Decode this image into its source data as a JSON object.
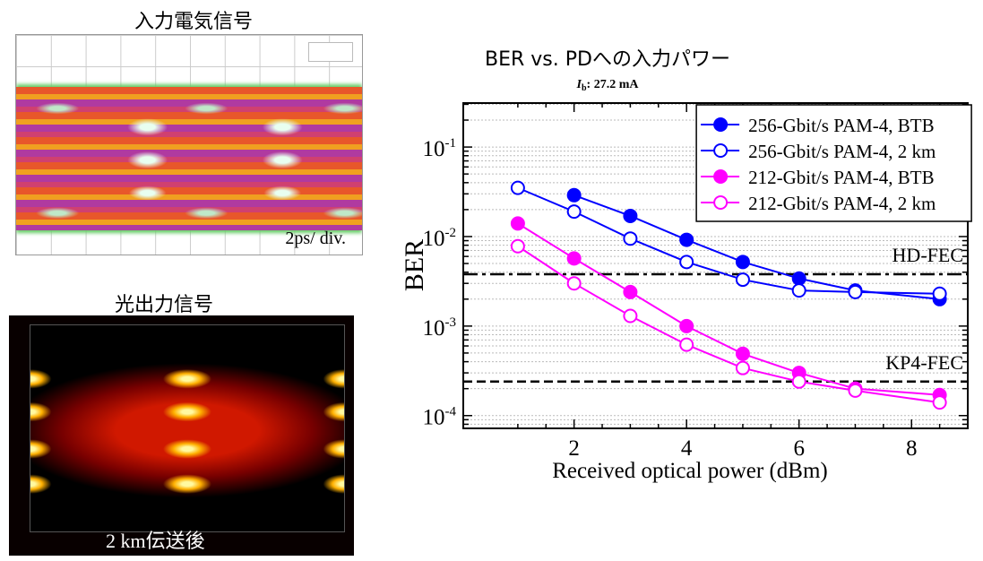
{
  "panels": {
    "electrical_title": "入力電気信号",
    "electrical_note": "2ps/ div.",
    "optical_title": "光出力信号",
    "optical_note": "2 km伝送後"
  },
  "chart_data": {
    "type": "line",
    "title": "BER vs. PDへの入力パワー",
    "subtitle_symbol": "I",
    "subtitle_sub": "b",
    "subtitle": ": 27.2 mA",
    "xlabel": "Received optical power (dBm)",
    "ylabel": "BER",
    "xlim": [
      0.03,
      9.0
    ],
    "ylim": [
      7.2e-05,
      0.31
    ],
    "yscale": "log",
    "xticks": [
      2,
      4,
      6,
      8
    ],
    "yticks": [
      {
        "value": 0.1,
        "label": "10",
        "exp": "-1"
      },
      {
        "value": 0.01,
        "label": "10",
        "exp": "-2"
      },
      {
        "value": 0.001,
        "label": "10",
        "exp": "-3"
      },
      {
        "value": 0.0001,
        "label": "10",
        "exp": "-4"
      }
    ],
    "grid": "dotted horizontal",
    "legend_position": "top-right",
    "series": [
      {
        "name": "256-Gbit/s PAM-4, BTB",
        "color": "#0000ff",
        "filled": true,
        "x": [
          2,
          3,
          4,
          5,
          6,
          7,
          8.5
        ],
        "y": [
          0.029,
          0.017,
          0.0092,
          0.0052,
          0.0034,
          0.0025,
          0.002
        ]
      },
      {
        "name": "256-Gbit/s PAM-4, 2 km",
        "color": "#0000ff",
        "filled": false,
        "x": [
          1,
          2,
          3,
          4,
          5,
          6,
          7,
          8.5
        ],
        "y": [
          0.035,
          0.019,
          0.0095,
          0.0052,
          0.0033,
          0.0025,
          0.0024,
          0.0023
        ]
      },
      {
        "name": "212-Gbit/s PAM-4, BTB",
        "color": "#ff00ff",
        "filled": true,
        "x": [
          1,
          2,
          3,
          4,
          5,
          6,
          7,
          8.5
        ],
        "y": [
          0.014,
          0.0057,
          0.0024,
          0.001,
          0.00049,
          0.0003,
          0.0002,
          0.00017
        ]
      },
      {
        "name": "212-Gbit/s PAM-4, 2 km",
        "color": "#ff00ff",
        "filled": false,
        "x": [
          1,
          2,
          3,
          4,
          5,
          6,
          7,
          8.5
        ],
        "y": [
          0.0078,
          0.003,
          0.0013,
          0.00062,
          0.00034,
          0.00024,
          0.00019,
          0.00014
        ]
      }
    ],
    "thresholds": [
      {
        "label": "HD-FEC",
        "value": 0.0038,
        "style": "dash-dot"
      },
      {
        "label": "KP4-FEC",
        "value": 0.00024,
        "style": "dashed"
      }
    ]
  }
}
